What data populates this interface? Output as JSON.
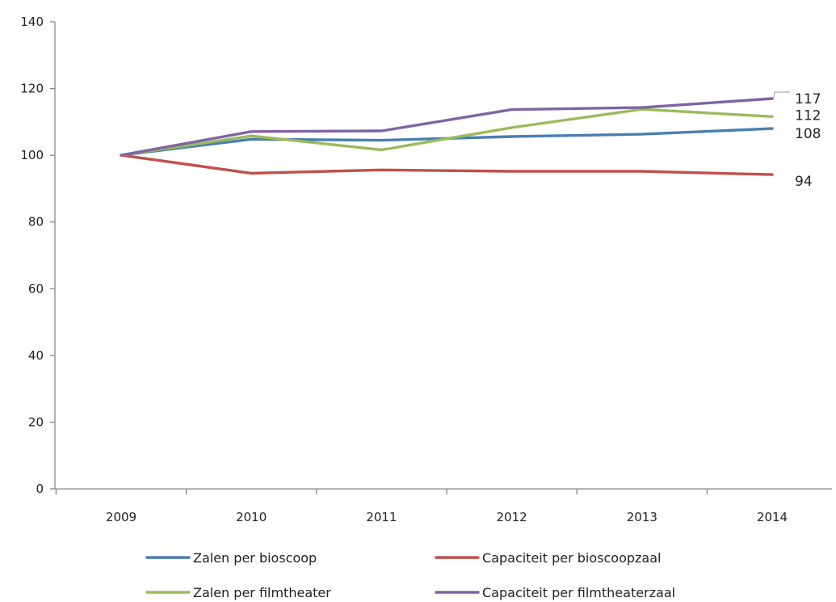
{
  "chart_data": {
    "type": "line",
    "title": "",
    "xlabel": "",
    "ylabel": "",
    "x": [
      "2009",
      "2010",
      "2011",
      "2012",
      "2013",
      "2014"
    ],
    "ylim": [
      0,
      140
    ],
    "yticks": [
      0,
      20,
      40,
      60,
      80,
      100,
      120,
      140
    ],
    "grid": false,
    "legend": "bottom",
    "series": [
      {
        "name": "Zalen per bioscoop",
        "color": "#4a7eb1",
        "values": [
          100,
          104.8,
          104.5,
          105.6,
          106.3,
          108
        ],
        "end_label": "108"
      },
      {
        "name": "Capaciteit per bioscoopzaal",
        "color": "#c0504d",
        "values": [
          100,
          94.6,
          95.6,
          95.2,
          95.2,
          94.2
        ],
        "end_label": "94"
      },
      {
        "name": "Zalen per filmtheater",
        "color": "#9bbb59",
        "values": [
          100,
          105.8,
          101.6,
          108.3,
          113.8,
          111.6
        ],
        "end_label": "112"
      },
      {
        "name": "Capaciteit per filmtheaterzaal",
        "color": "#8064a2",
        "values": [
          100,
          107.1,
          107.3,
          113.7,
          114.3,
          117
        ],
        "end_label": "117"
      }
    ]
  }
}
